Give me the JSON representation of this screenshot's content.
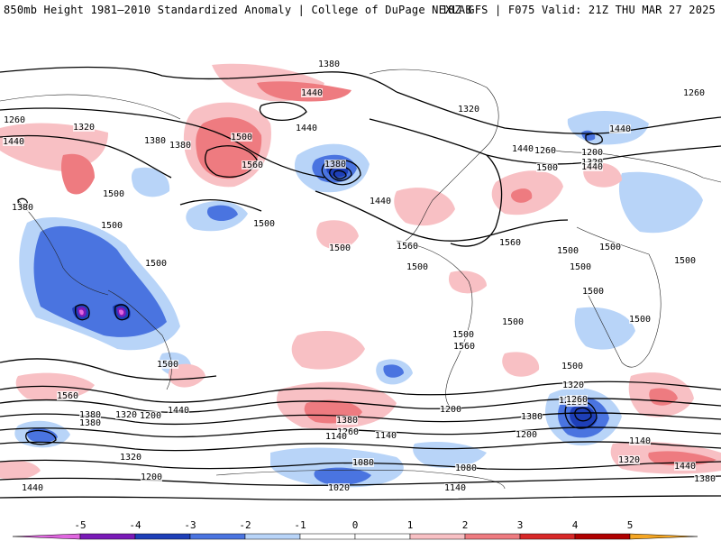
{
  "header": {
    "left": "850mb Height 1981–2010 Standardized Anomaly | College of DuPage NEXLAB",
    "right": "18Z GFS | F075 Valid: 21Z THU MAR 27 2025"
  },
  "colors": {
    "neg5": "#e066e0",
    "neg4": "#7a1ab8",
    "neg3": "#1e3fb8",
    "neg2": "#4a74e0",
    "neg1": "#b8d4f8",
    "zero": "#ffffff",
    "pos1": "#f8c0c4",
    "pos2": "#ee7b80",
    "pos3": "#d82828",
    "pos4": "#b00000",
    "pos5": "#f5a623"
  },
  "colorbar": {
    "ticks": [
      "-5",
      "-4",
      "-3",
      "-2",
      "-1",
      "0",
      "1",
      "2",
      "3",
      "4",
      "5"
    ]
  },
  "contour_labels": [
    "1380",
    "1440",
    "1260",
    "1260",
    "1320",
    "1320",
    "1440",
    "1380",
    "1380",
    "1500",
    "1440",
    "1500",
    "1560",
    "1380",
    "1440",
    "1500",
    "1500",
    "1560",
    "1500",
    "1500",
    "1500",
    "1560",
    "1500",
    "1380",
    "1260",
    "1200",
    "1320",
    "1440",
    "1500",
    "1500",
    "1500",
    "1500",
    "1500",
    "1500",
    "1440",
    "1500",
    "1500",
    "1560",
    "1500",
    "1560",
    "1440",
    "1500",
    "1380",
    "1320",
    "1380",
    "1200",
    "1260",
    "1440",
    "1320",
    "1380",
    "1200",
    "1260",
    "1140",
    "1320",
    "1200",
    "1080",
    "1140",
    "1020",
    "1080",
    "1140",
    "1200",
    "1260",
    "1200",
    "1320",
    "1380",
    "1440",
    "1140",
    "1380",
    "1440"
  ]
}
